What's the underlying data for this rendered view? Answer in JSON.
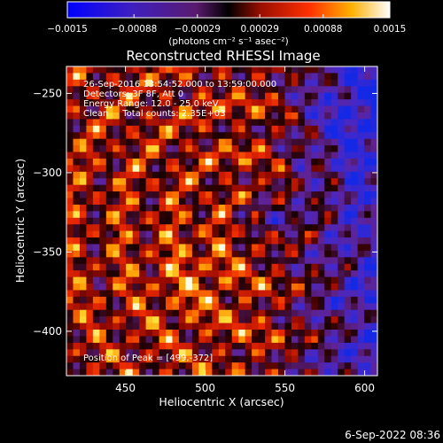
{
  "chart_data": {
    "type": "heatmap",
    "title": "Reconstructed RHESSI Image",
    "xlabel": "Heliocentric X (arcsec)",
    "ylabel": "Heliocentric Y (arcsec)",
    "xlim": [
      413,
      428
    ],
    "ylim": [
      -428,
      -233
    ],
    "x_ticks": [
      450,
      500,
      550,
      600
    ],
    "y_ticks": [
      -250,
      -300,
      -350,
      -400
    ],
    "x_tick_labels": [
      "450",
      "500",
      "550",
      "600"
    ],
    "y_tick_labels": [
      "−250",
      "−300",
      "−350",
      "−400"
    ],
    "colorbar": {
      "min": -0.0015,
      "max": 0.0015,
      "ticks": [
        -0.0015,
        -0.00088,
        -0.00029,
        0.00029,
        0.00088,
        0.0015
      ],
      "tick_labels": [
        "−0.0015",
        "−0.00088",
        "−0.00029",
        "0.00029",
        "0.00088",
        "0.0015"
      ],
      "unit_label": "(photons cm⁻² s⁻¹ asec⁻²)"
    },
    "annotations": [
      "26-Sep-2016 13:54:52.000 to 13:59:00.000",
      "Detectors: 3F 8F, Att 0",
      "Energy Range: 12.0 - 25.0 keV",
      "Clean     Total counts: 2.35E+03"
    ],
    "peak_label": "Position of Peak = [499,-372]",
    "peak": [
      499,
      -372
    ]
  },
  "footer": {
    "date": "6-Sep-2022 08:36"
  },
  "colors": {
    "background": "#000000",
    "text": "#ffffff"
  }
}
